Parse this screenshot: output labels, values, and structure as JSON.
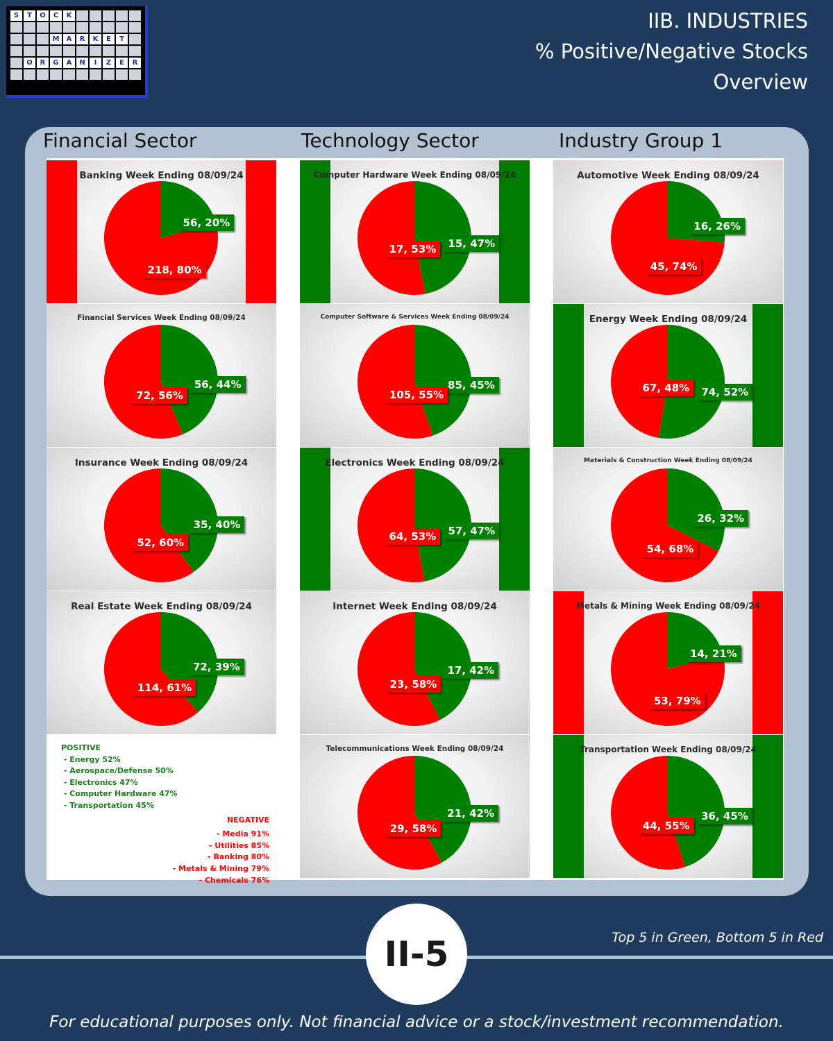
{
  "logo": {
    "rows": [
      [
        "S",
        "T",
        "O",
        "C",
        "K",
        "",
        "",
        "",
        "",
        ""
      ],
      [
        "",
        "",
        "",
        "",
        "",
        "",
        "",
        "",
        "",
        ""
      ],
      [
        "",
        "",
        "",
        "M",
        "A",
        "R",
        "K",
        "E",
        "T",
        ""
      ],
      [
        "",
        "",
        "",
        "",
        "",
        "",
        "",
        "",
        "",
        ""
      ],
      [
        "",
        "O",
        "R",
        "G",
        "A",
        "N",
        "I",
        "Z",
        "E",
        "R"
      ],
      [
        "",
        "",
        "",
        "",
        "",
        "",
        "",
        "",
        "",
        ""
      ]
    ]
  },
  "header": {
    "line1": "IIB. INDUSTRIES",
    "line2": "% Positive/Negative Stocks",
    "line3": "Overview"
  },
  "columns": [
    "Financial Sector",
    "Technology Sector",
    "Industry Group 1"
  ],
  "colors": {
    "positive": "#008000",
    "negative": "#ff0000",
    "bar_green": "#007a00",
    "bar_red": "#ff0000"
  },
  "chart_data": [
    {
      "type": "pie",
      "title": "Banking Week Ending 08/09/24",
      "slices": [
        {
          "name": "positive",
          "count": 56,
          "percent": 20,
          "label": "56, 20%"
        },
        {
          "name": "negative",
          "count": 218,
          "percent": 80,
          "label": "218, 80%"
        }
      ],
      "side_bars": "red"
    },
    {
      "type": "pie",
      "title": "Financial Services Week Ending 08/09/24",
      "slices": [
        {
          "name": "positive",
          "count": 56,
          "percent": 44,
          "label": "56, 44%"
        },
        {
          "name": "negative",
          "count": 72,
          "percent": 56,
          "label": "72, 56%"
        }
      ],
      "side_bars": ""
    },
    {
      "type": "pie",
      "title": "Insurance Week Ending 08/09/24",
      "slices": [
        {
          "name": "positive",
          "count": 35,
          "percent": 40,
          "label": "35, 40%"
        },
        {
          "name": "negative",
          "count": 52,
          "percent": 60,
          "label": "52, 60%"
        }
      ],
      "side_bars": ""
    },
    {
      "type": "pie",
      "title": "Real Estate Week Ending 08/09/24",
      "slices": [
        {
          "name": "positive",
          "count": 72,
          "percent": 39,
          "label": "72, 39%"
        },
        {
          "name": "negative",
          "count": 114,
          "percent": 61,
          "label": "114, 61%"
        }
      ],
      "side_bars": ""
    },
    {
      "type": "pie",
      "title": "Computer Hardware Week Ending 08/09/24",
      "slices": [
        {
          "name": "positive",
          "count": 15,
          "percent": 47,
          "label": "15, 47%"
        },
        {
          "name": "negative",
          "count": 17,
          "percent": 53,
          "label": "17, 53%"
        }
      ],
      "side_bars": "green"
    },
    {
      "type": "pie",
      "title": "Computer Software & Services Week Ending 08/09/24",
      "slices": [
        {
          "name": "positive",
          "count": 85,
          "percent": 45,
          "label": "85, 45%"
        },
        {
          "name": "negative",
          "count": 105,
          "percent": 55,
          "label": "105, 55%"
        }
      ],
      "side_bars": ""
    },
    {
      "type": "pie",
      "title": "Electronics Week Ending 08/09/24",
      "slices": [
        {
          "name": "positive",
          "count": 57,
          "percent": 47,
          "label": "57, 47%"
        },
        {
          "name": "negative",
          "count": 64,
          "percent": 53,
          "label": "64, 53%"
        }
      ],
      "side_bars": "green"
    },
    {
      "type": "pie",
      "title": "Internet Week Ending 08/09/24",
      "slices": [
        {
          "name": "positive",
          "count": 17,
          "percent": 42,
          "label": "17, 42%"
        },
        {
          "name": "negative",
          "count": 23,
          "percent": 58,
          "label": "23, 58%"
        }
      ],
      "side_bars": ""
    },
    {
      "type": "pie",
      "title": "Telecommunications Week Ending 08/09/24",
      "slices": [
        {
          "name": "positive",
          "count": 21,
          "percent": 42,
          "label": "21, 42%"
        },
        {
          "name": "negative",
          "count": 29,
          "percent": 58,
          "label": "29, 58%"
        }
      ],
      "side_bars": ""
    },
    {
      "type": "pie",
      "title": "Automotive Week Ending 08/09/24",
      "slices": [
        {
          "name": "positive",
          "count": 16,
          "percent": 26,
          "label": "16, 26%"
        },
        {
          "name": "negative",
          "count": 45,
          "percent": 74,
          "label": "45, 74%"
        }
      ],
      "side_bars": ""
    },
    {
      "type": "pie",
      "title": "Energy Week Ending 08/09/24",
      "slices": [
        {
          "name": "positive",
          "count": 74,
          "percent": 52,
          "label": "74, 52%"
        },
        {
          "name": "negative",
          "count": 67,
          "percent": 48,
          "label": "67, 48%"
        }
      ],
      "side_bars": "green"
    },
    {
      "type": "pie",
      "title": "Materials & Construction Week Ending 08/09/24",
      "slices": [
        {
          "name": "positive",
          "count": 26,
          "percent": 32,
          "label": "26, 32%"
        },
        {
          "name": "negative",
          "count": 54,
          "percent": 68,
          "label": "54, 68%"
        }
      ],
      "side_bars": ""
    },
    {
      "type": "pie",
      "title": "Metals & Mining  Week Ending 08/09/24",
      "slices": [
        {
          "name": "positive",
          "count": 14,
          "percent": 21,
          "label": "14, 21%"
        },
        {
          "name": "negative",
          "count": 53,
          "percent": 79,
          "label": "53, 79%"
        }
      ],
      "side_bars": "red"
    },
    {
      "type": "pie",
      "title": "Transportation  Week Ending 08/09/24",
      "slices": [
        {
          "name": "positive",
          "count": 36,
          "percent": 45,
          "label": "36, 45%"
        },
        {
          "name": "negative",
          "count": 44,
          "percent": 55,
          "label": "44, 55%"
        }
      ],
      "side_bars": "green"
    }
  ],
  "notes": {
    "positive_title": "POSITIVE",
    "positive": [
      "- Energy 52%",
      "- Aerospace/Defense 50%",
      "- Electronics 47%",
      "- Computer Hardware 47%",
      "- Transportation 45%"
    ],
    "negative_title": "NEGATIVE",
    "negative": [
      "- Media 91%",
      "- Utilities 85%",
      "- Banking 80%",
      "- Metals & Mining 79%",
      "- Chemicals 76%"
    ]
  },
  "footer": {
    "badge": "II-5",
    "top_note": "Top 5 in Green, Bottom 5 in Red",
    "disclaimer": "For educational purposes only. Not financial advice or a stock/investment recommendation."
  }
}
